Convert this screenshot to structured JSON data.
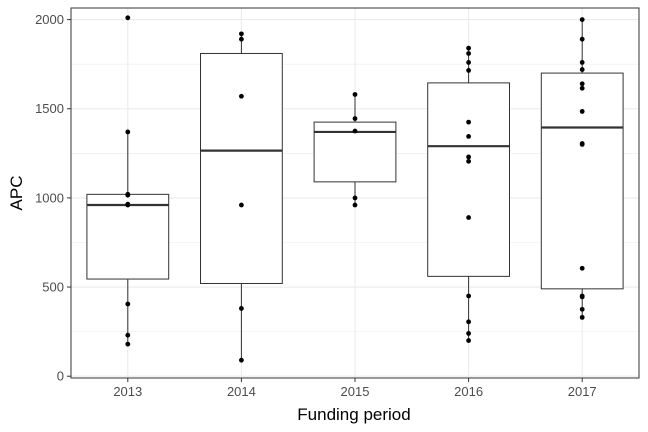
{
  "chart_data": {
    "type": "box",
    "title": "",
    "xlabel": "Funding period",
    "ylabel": "APC",
    "ylim": [
      -10,
      2065
    ],
    "yticks": [
      0,
      500,
      1000,
      1500,
      2000
    ],
    "ytick_labels": [
      "0",
      "500",
      "1000",
      "1500",
      "2000"
    ],
    "grid": true,
    "legend": "none",
    "categories": [
      "2013",
      "2014",
      "2015",
      "2016",
      "2017"
    ],
    "boxes": [
      {
        "category": "2013",
        "min": 180,
        "q1": 545,
        "median": 960,
        "q3": 1020,
        "max": 1370
      },
      {
        "category": "2014",
        "min": 90,
        "q1": 520,
        "median": 1265,
        "q3": 1810,
        "max": 1920
      },
      {
        "category": "2015",
        "min": 960,
        "q1": 1090,
        "median": 1370,
        "q3": 1425,
        "max": 1580
      },
      {
        "category": "2016",
        "min": 200,
        "q1": 560,
        "median": 1290,
        "q3": 1645,
        "max": 1840
      },
      {
        "category": "2017",
        "min": 330,
        "q1": 490,
        "median": 1395,
        "q3": 1700,
        "max": 2000
      }
    ],
    "points": [
      {
        "category": "2013",
        "values": [
          2010,
          1370,
          1020,
          1015,
          965,
          960,
          405,
          230,
          180
        ]
      },
      {
        "category": "2014",
        "values": [
          1920,
          1890,
          1570,
          960,
          380,
          90
        ]
      },
      {
        "category": "2015",
        "values": [
          1580,
          1445,
          1375,
          1000,
          960
        ]
      },
      {
        "category": "2016",
        "values": [
          1840,
          1810,
          1760,
          1715,
          1425,
          1345,
          1230,
          1205,
          890,
          450,
          305,
          240,
          200
        ]
      },
      {
        "category": "2017",
        "values": [
          2000,
          1890,
          1760,
          1720,
          1640,
          1615,
          1485,
          1305,
          1300,
          605,
          450,
          445,
          375,
          330
        ]
      }
    ],
    "colors": {
      "panel_border": "#333333",
      "grid": "#ebebeb",
      "box": "#333333",
      "point": "#000000",
      "tick_text": "#4d4d4d",
      "title_text": "#000000"
    }
  }
}
